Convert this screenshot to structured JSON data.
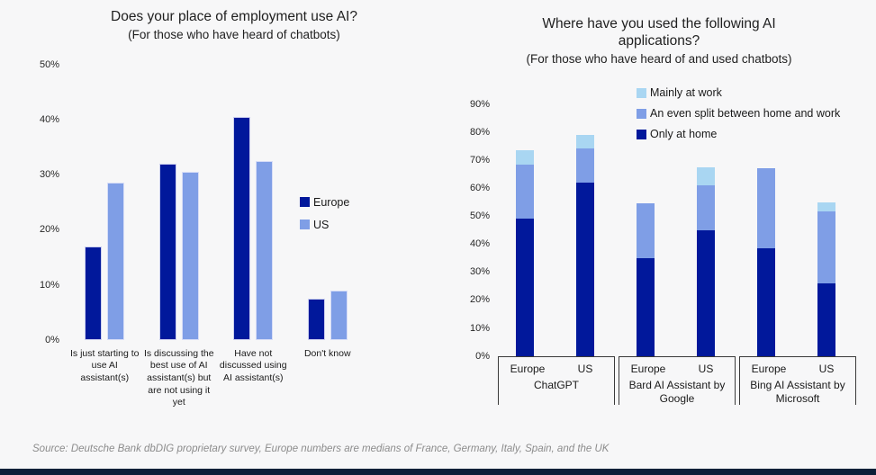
{
  "colors": {
    "europe_dark": "#01189B",
    "us_periwinkle": "#7F9EE6",
    "work_light": "#A9D6F2",
    "background": "#F7F7F8",
    "footer_bar": "#0C2038"
  },
  "footer": {
    "source_note": "Source: Deutsche Bank dbDIG proprietary survey, Europe numbers are medians of France, Germany, Italy, Spain, and the UK"
  },
  "chart_data": [
    {
      "type": "bar",
      "title": "Does your place of employment use AI?",
      "subtitle": "(For those who have heard of chatbots)",
      "categories": [
        "Is just starting to use AI assistant(s)",
        "Is discussing the best use of AI assistant(s) but are not using it yet",
        "Have not discussed using AI assistant(s)",
        "Don't know"
      ],
      "series": [
        {
          "name": "Europe",
          "color": "#01189B",
          "values": [
            17,
            32,
            40.5,
            7.5
          ]
        },
        {
          "name": "US",
          "color": "#7F9EE6",
          "values": [
            28.5,
            30.5,
            32.5,
            9
          ]
        }
      ],
      "ylim": [
        0,
        50
      ],
      "yticks": [
        0,
        10,
        20,
        30,
        40,
        50
      ],
      "ytick_suffix": "%",
      "grid": false,
      "legend_position": "middle-right"
    },
    {
      "type": "stacked-bar",
      "title": "Where have you used the following AI applications?",
      "subtitle": "(For those who have heard of and used chatbots)",
      "segments_bottom_to_top": [
        "Only at home",
        "An even split between home and work",
        "Mainly at work"
      ],
      "segment_colors": {
        "Only at home": "#01189B",
        "An even split between home and work": "#7F9EE6",
        "Mainly at work": "#A9D6F2"
      },
      "legend": [
        {
          "label": "Mainly at work",
          "color": "#A9D6F2"
        },
        {
          "label": "An even split between home and work",
          "color": "#7F9EE6"
        },
        {
          "label": "Only at home",
          "color": "#01189B"
        }
      ],
      "groups": [
        {
          "label": "ChatGPT",
          "bars": [
            {
              "label": "Europe",
              "values": [
                49,
                19.5,
                5
              ]
            },
            {
              "label": "US",
              "values": [
                62,
                12,
                5
              ]
            }
          ]
        },
        {
          "label": "Bard AI Assistant by Google",
          "bars": [
            {
              "label": "Europe",
              "values": [
                35,
                19.5,
                0
              ]
            },
            {
              "label": "US",
              "values": [
                45,
                16,
                6.5
              ]
            }
          ]
        },
        {
          "label": "Bing AI Assistant by Microsoft",
          "bars": [
            {
              "label": "Europe",
              "values": [
                38.5,
                28.5,
                0
              ]
            },
            {
              "label": "US",
              "values": [
                26,
                25.5,
                3.5
              ]
            }
          ]
        }
      ],
      "ylim": [
        0,
        90
      ],
      "yticks": [
        0,
        10,
        20,
        30,
        40,
        50,
        60,
        70,
        80,
        90
      ],
      "ytick_suffix": "%",
      "grid": false,
      "legend_position": "top-right"
    }
  ]
}
